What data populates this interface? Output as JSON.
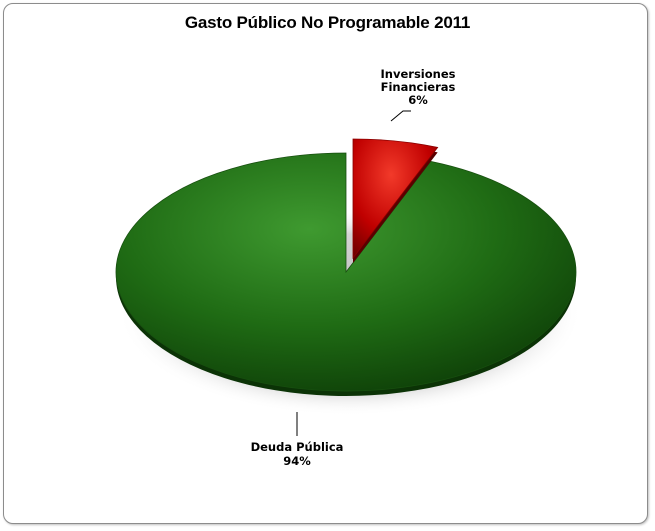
{
  "chart_data": {
    "type": "pie",
    "title": "Gasto Público No Programable 2011",
    "categories": [
      "Deuda Pública",
      "Inversiones Financieras"
    ],
    "values": [
      94,
      6
    ],
    "value_labels": [
      "94%",
      "6%"
    ],
    "colors": [
      "#1f6b14",
      "#c00000"
    ],
    "label_lines": [
      [
        "Deuda Pública",
        "94%"
      ],
      [
        "Inversiones",
        "Financieras",
        "6%"
      ]
    ],
    "legend": "none",
    "exploded": "Inversiones Financieras"
  }
}
